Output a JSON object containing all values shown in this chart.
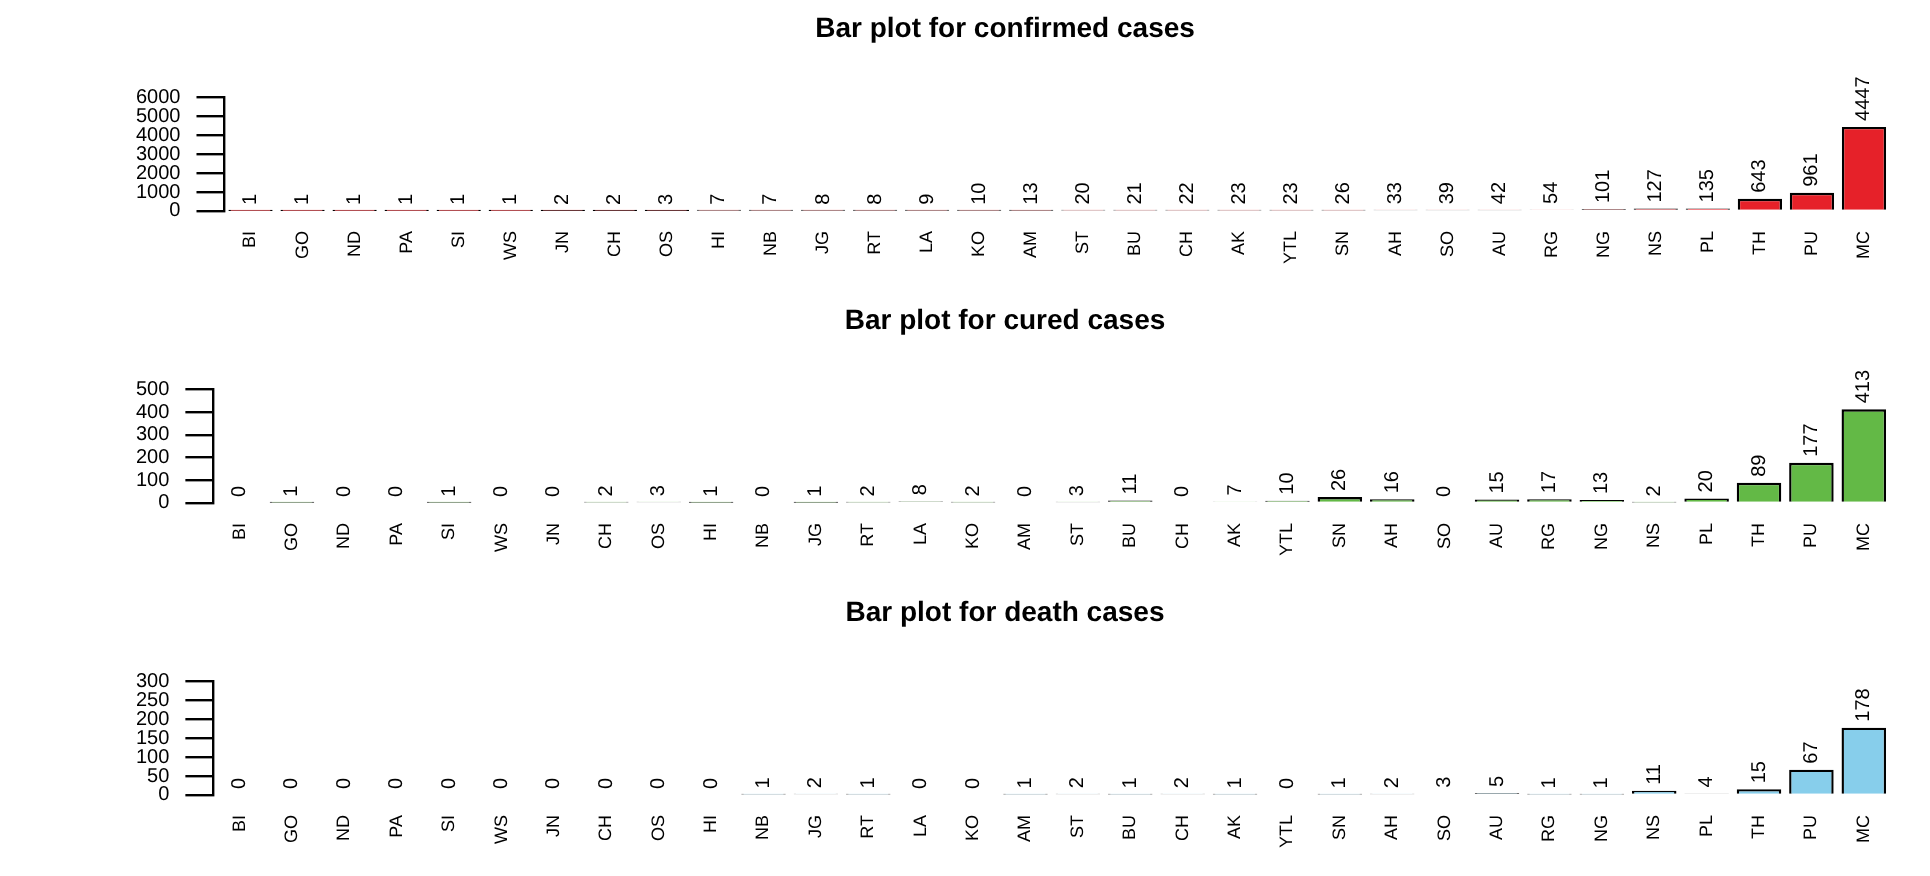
{
  "chart_data": [
    {
      "type": "bar",
      "title": "Bar plot for confirmed cases",
      "categories": [
        "BI",
        "GO",
        "ND",
        "PA",
        "SI",
        "WS",
        "JN",
        "CH",
        "OS",
        "HI",
        "NB",
        "JG",
        "RT",
        "LA",
        "KO",
        "AM",
        "ST",
        "BU",
        "CH",
        "AK",
        "YTL",
        "SN",
        "AH",
        "SO",
        "AU",
        "RG",
        "NG",
        "NS",
        "PL",
        "TH",
        "PU",
        "MC"
      ],
      "values": [
        1,
        1,
        1,
        1,
        1,
        1,
        2,
        2,
        3,
        7,
        7,
        8,
        8,
        9,
        10,
        13,
        20,
        21,
        22,
        23,
        23,
        26,
        33,
        39,
        42,
        54,
        101,
        127,
        135,
        643,
        961,
        4447
      ],
      "color": "#e62129",
      "ylim": [
        0,
        6000
      ],
      "yticks": [
        0,
        1000,
        2000,
        3000,
        4000,
        5000,
        6000
      ],
      "data_labels": true,
      "grid": false,
      "legend": false
    },
    {
      "type": "bar",
      "title": "Bar plot for cured cases",
      "categories": [
        "BI",
        "GO",
        "ND",
        "PA",
        "SI",
        "WS",
        "JN",
        "CH",
        "OS",
        "HI",
        "NB",
        "JG",
        "RT",
        "LA",
        "KO",
        "AM",
        "ST",
        "BU",
        "CH",
        "AK",
        "YTL",
        "SN",
        "AH",
        "SO",
        "AU",
        "RG",
        "NG",
        "NS",
        "PL",
        "TH",
        "PU",
        "MC"
      ],
      "values": [
        0,
        1,
        0,
        0,
        1,
        0,
        0,
        2,
        3,
        1,
        0,
        1,
        2,
        8,
        2,
        0,
        3,
        11,
        0,
        7,
        10,
        26,
        16,
        0,
        15,
        17,
        13,
        2,
        20,
        89,
        177,
        413
      ],
      "color": "#63b946",
      "ylim": [
        0,
        500
      ],
      "yticks": [
        0,
        100,
        200,
        300,
        400,
        500
      ],
      "data_labels": true,
      "grid": false,
      "legend": false
    },
    {
      "type": "bar",
      "title": "Bar plot for death cases",
      "categories": [
        "BI",
        "GO",
        "ND",
        "PA",
        "SI",
        "WS",
        "JN",
        "CH",
        "OS",
        "HI",
        "NB",
        "JG",
        "RT",
        "LA",
        "KO",
        "AM",
        "ST",
        "BU",
        "CH",
        "AK",
        "YTL",
        "SN",
        "AH",
        "SO",
        "AU",
        "RG",
        "NG",
        "NS",
        "PL",
        "TH",
        "PU",
        "MC"
      ],
      "values": [
        0,
        0,
        0,
        0,
        0,
        0,
        0,
        0,
        0,
        0,
        1,
        2,
        1,
        0,
        0,
        1,
        2,
        1,
        2,
        1,
        0,
        1,
        2,
        3,
        5,
        1,
        1,
        11,
        4,
        15,
        67,
        178
      ],
      "color": "#87ceeb",
      "ylim": [
        0,
        300
      ],
      "yticks": [
        0,
        50,
        100,
        150,
        200,
        250,
        300
      ],
      "data_labels": true,
      "grid": false,
      "legend": false
    }
  ]
}
